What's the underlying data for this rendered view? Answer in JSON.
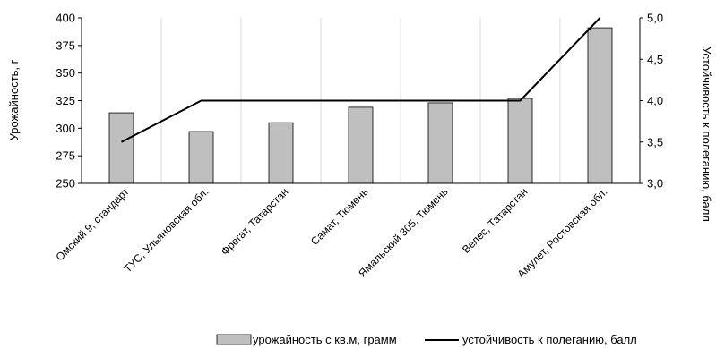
{
  "chart_data": {
    "type": "bar+line",
    "categories": [
      "Омский 9, стандарт",
      "ТУС, Ульяновская обл.",
      "Фрегат, Татарстан",
      "Самат, Тюмень",
      "Ямальский 305, Тюмень",
      "Велес, Татарстан",
      "Амулет, Ростовская обл."
    ],
    "series": [
      {
        "name": "урожайность с кв.м, грамм",
        "type": "bar",
        "axis": "left",
        "color": "#bfbfbf",
        "values": [
          314,
          297,
          305,
          319,
          323,
          327,
          391
        ]
      },
      {
        "name": "устойчивость к полеганию, балл",
        "type": "line",
        "axis": "right",
        "color": "#000000",
        "values": [
          3.5,
          4.0,
          4.0,
          4.0,
          4.0,
          4.0,
          5.0
        ]
      }
    ],
    "ylabel": "Урожайность, г",
    "y2label": "Устойчивость к полеганию, балл",
    "ylim": [
      250,
      400
    ],
    "y2lim": [
      3.0,
      5.0
    ],
    "yticks": [
      "250",
      "275",
      "300",
      "325",
      "350",
      "375",
      "400"
    ],
    "y2ticks": [
      "3,0",
      "3,5",
      "4,0",
      "4,5",
      "5,0"
    ],
    "grid": "vertical",
    "legend_position": "bottom"
  }
}
